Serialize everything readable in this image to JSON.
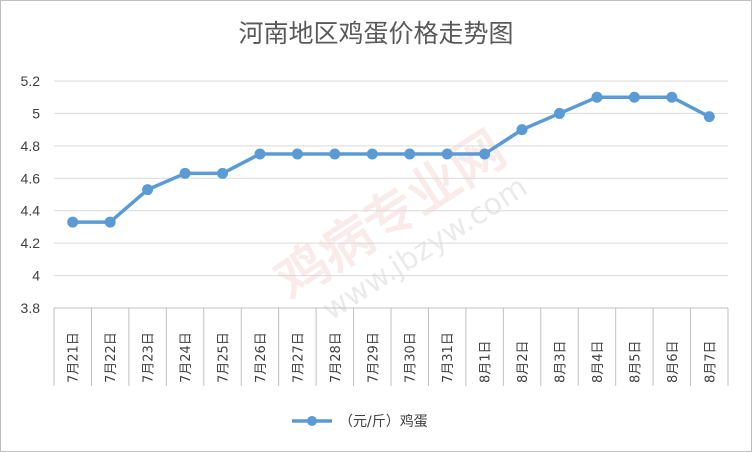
{
  "chart_data": {
    "type": "line",
    "title": "河南地区鸡蛋价格走势图",
    "xlabel": "",
    "ylabel": "",
    "categories": [
      "7月21日",
      "7月22日",
      "7月23日",
      "7月24日",
      "7月25日",
      "7月26日",
      "7月27日",
      "7月28日",
      "7月29日",
      "7月30日",
      "7月31日",
      "8月1日",
      "8月2日",
      "8月3日",
      "8月4日",
      "8月5日",
      "8月6日",
      "8月7日"
    ],
    "series": [
      {
        "name": "（元/斤）鸡蛋",
        "values": [
          4.33,
          4.33,
          4.53,
          4.63,
          4.63,
          4.75,
          4.75,
          4.75,
          4.75,
          4.75,
          4.75,
          4.75,
          4.9,
          5.0,
          5.1,
          5.1,
          5.1,
          4.98
        ]
      }
    ],
    "yticks": [
      "3.8",
      "4",
      "4.2",
      "4.4",
      "4.6",
      "4.8",
      "5",
      "5.2"
    ],
    "ylim": [
      3.8,
      5.2
    ],
    "grid": true,
    "legend": "bottom",
    "colors": {
      "line": "#5b9bd5",
      "grid": "#d9d9d9",
      "axis": "#bfbfbf"
    }
  },
  "watermark": {
    "main": "鸡病专业网",
    "url": "www.jbzyw.com"
  }
}
